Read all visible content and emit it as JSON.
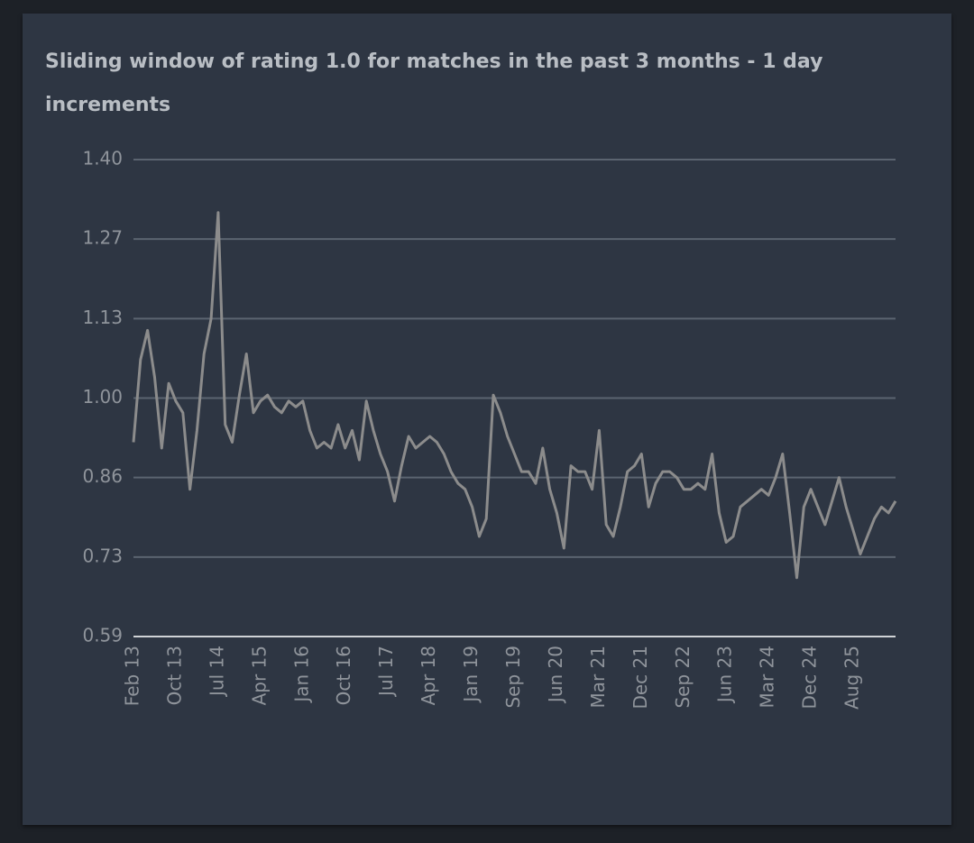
{
  "chart_data": {
    "type": "line",
    "title": "Sliding window of rating 1.0 for matches in the past 3 months - 1 day increments",
    "categories": [
      "Feb 13",
      null,
      null,
      null,
      null,
      null,
      "Oct 13",
      null,
      null,
      null,
      null,
      null,
      "Jul 14",
      null,
      null,
      null,
      null,
      null,
      "Apr 15",
      null,
      null,
      null,
      null,
      null,
      "Jan 16",
      null,
      null,
      null,
      null,
      null,
      "Oct 16",
      null,
      null,
      null,
      null,
      null,
      "Jul 17",
      null,
      null,
      null,
      null,
      null,
      "Apr 18",
      null,
      null,
      null,
      null,
      null,
      "Jan 19",
      null,
      null,
      null,
      null,
      null,
      "Sep 19",
      null,
      null,
      null,
      null,
      null,
      "Jun 20",
      null,
      null,
      null,
      null,
      null,
      "Mar 21",
      null,
      null,
      null,
      null,
      null,
      "Dec 21",
      null,
      null,
      null,
      null,
      null,
      "Sep 22",
      null,
      null,
      null,
      null,
      null,
      "Jun 23",
      null,
      null,
      null,
      null,
      null,
      "Mar 24",
      null,
      null,
      null,
      null,
      null,
      "Dec 24",
      null,
      null,
      null,
      null,
      null,
      "Aug 25",
      null,
      null,
      null,
      null,
      null,
      null
    ],
    "values": [
      0.92,
      1.06,
      1.11,
      1.03,
      0.91,
      1.02,
      0.99,
      0.97,
      0.84,
      0.94,
      1.07,
      1.13,
      1.31,
      0.95,
      0.92,
      1.0,
      1.07,
      0.97,
      0.99,
      1.0,
      0.98,
      0.97,
      0.99,
      0.98,
      0.99,
      0.94,
      0.91,
      0.92,
      0.91,
      0.95,
      0.91,
      0.94,
      0.89,
      0.99,
      0.94,
      0.9,
      0.87,
      0.82,
      0.88,
      0.93,
      0.91,
      0.92,
      0.93,
      0.92,
      0.9,
      0.87,
      0.85,
      0.84,
      0.81,
      0.76,
      0.79,
      1.0,
      0.97,
      0.93,
      0.9,
      0.87,
      0.87,
      0.85,
      0.91,
      0.84,
      0.8,
      0.74,
      0.88,
      0.87,
      0.87,
      0.84,
      0.94,
      0.78,
      0.76,
      0.81,
      0.87,
      0.88,
      0.9,
      0.81,
      0.85,
      0.87,
      0.87,
      0.86,
      0.84,
      0.84,
      0.85,
      0.84,
      0.9,
      0.8,
      0.75,
      0.76,
      0.81,
      0.82,
      0.83,
      0.84,
      0.83,
      0.86,
      0.9,
      0.8,
      0.69,
      0.81,
      0.84,
      0.81,
      0.78,
      0.82,
      0.86,
      0.81,
      0.77,
      0.73,
      0.76,
      0.79,
      0.81,
      0.8,
      0.82
    ],
    "color": "#8c8c8c",
    "ylim": [
      0.59,
      1.4
    ],
    "yticks": [
      {
        "value": 0.59,
        "label": "0.59"
      },
      {
        "value": 0.725,
        "label": "0.73"
      },
      {
        "value": 0.86,
        "label": "0.86"
      },
      {
        "value": 0.995,
        "label": "1.00"
      },
      {
        "value": 1.13,
        "label": "1.13"
      },
      {
        "value": 1.265,
        "label": "1.27"
      },
      {
        "value": 1.4,
        "label": "1.40"
      }
    ],
    "grid": true
  }
}
